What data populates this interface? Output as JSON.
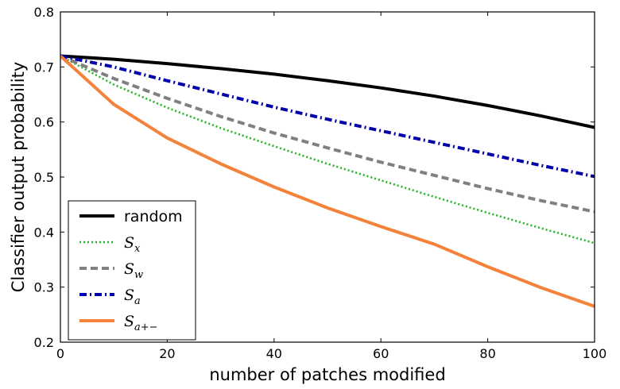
{
  "chart_data": {
    "type": "line",
    "xlabel": "number of patches modified",
    "ylabel": "Classifier output probability",
    "xlim": [
      0,
      100
    ],
    "ylim": [
      0.2,
      0.8
    ],
    "xticks": [
      "0",
      "20",
      "40",
      "60",
      "80",
      "100"
    ],
    "yticks": [
      "0.2",
      "0.3",
      "0.4",
      "0.5",
      "0.6",
      "0.7",
      "0.8"
    ],
    "grid": false,
    "legend_position": "lower-left",
    "x": [
      0,
      10,
      20,
      30,
      40,
      50,
      60,
      70,
      80,
      90,
      100
    ],
    "series": [
      {
        "name": "random",
        "label_main": "random",
        "label_sub": "",
        "color": "#000000",
        "style": "solid",
        "values": [
          0.72,
          0.714,
          0.706,
          0.697,
          0.687,
          0.675,
          0.662,
          0.647,
          0.63,
          0.611,
          0.59
        ]
      },
      {
        "name": "S_x",
        "label_main": "S",
        "label_sub": "x",
        "color": "#22b522",
        "style": "dotted",
        "values": [
          0.72,
          0.668,
          0.626,
          0.589,
          0.556,
          0.524,
          0.494,
          0.464,
          0.435,
          0.407,
          0.38
        ]
      },
      {
        "name": "S_w",
        "label_main": "S",
        "label_sub": "w",
        "color": "#808080",
        "style": "dashed",
        "values": [
          0.72,
          0.679,
          0.643,
          0.61,
          0.58,
          0.553,
          0.527,
          0.503,
          0.479,
          0.457,
          0.437
        ]
      },
      {
        "name": "S_a",
        "label_main": "S",
        "label_sub": "a",
        "color": "#0000aa",
        "style": "dashdot",
        "values": [
          0.72,
          0.7,
          0.675,
          0.651,
          0.627,
          0.605,
          0.584,
          0.563,
          0.542,
          0.521,
          0.501
        ]
      },
      {
        "name": "S_{a+-}",
        "label_main": "S",
        "label_sub": "a+−",
        "color": "#f5823a",
        "style": "solid",
        "values": [
          0.72,
          0.632,
          0.571,
          0.524,
          0.482,
          0.444,
          0.41,
          0.378,
          0.337,
          0.299,
          0.265
        ]
      }
    ]
  }
}
